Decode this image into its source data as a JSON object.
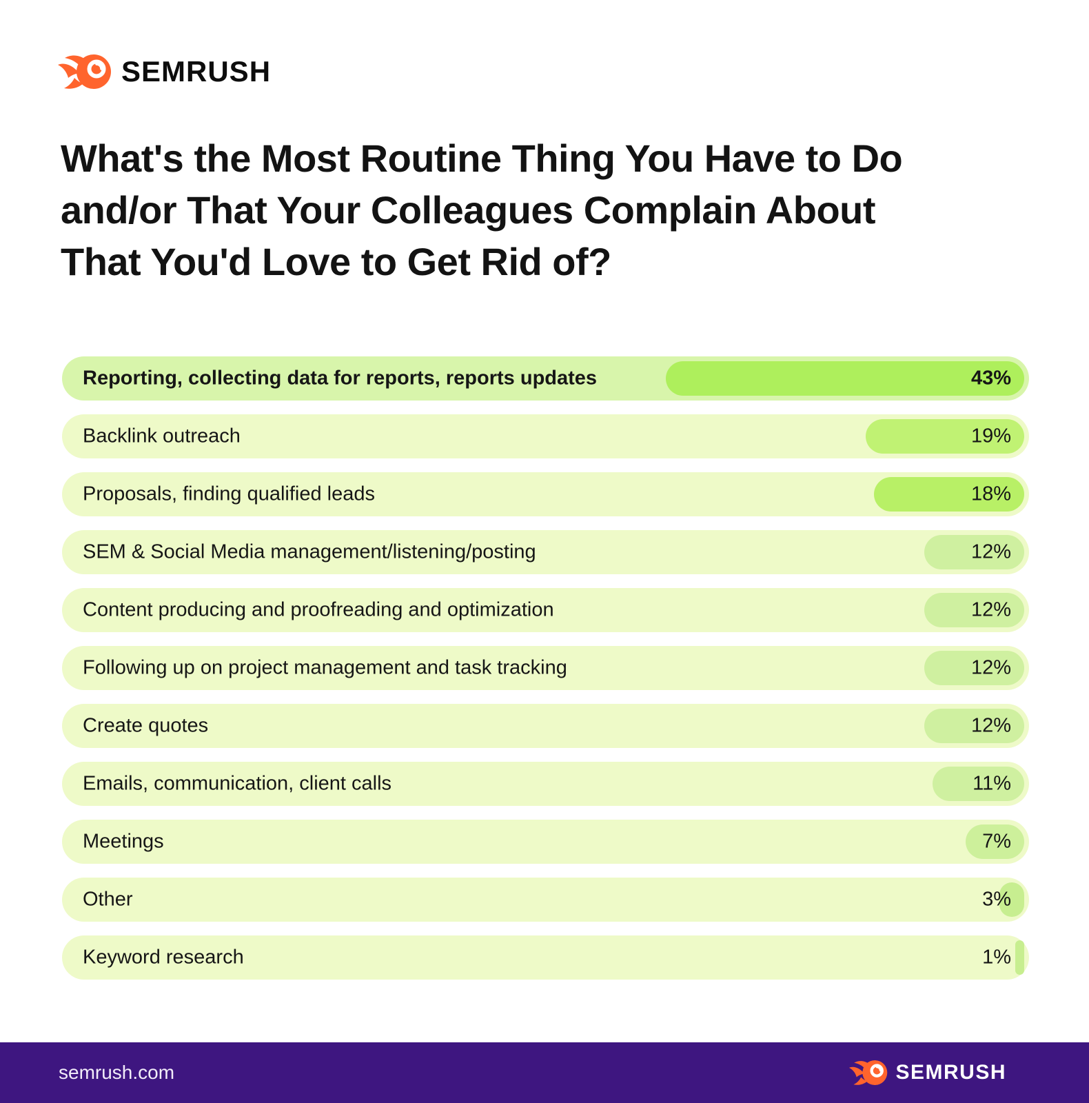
{
  "header": {
    "brand": "SEMRUSH",
    "title_lines": [
      "What's the Most Routine Thing You Have to Do",
      "and/or That Your Colleagues Complain About",
      "That You'd Love to Get Rid of?"
    ]
  },
  "chart_data": {
    "type": "bar",
    "orientation": "horizontal",
    "title": "What's the Most Routine Thing You Have to Do and/or That Your Colleagues Complain About That You'd Love to Get Rid of?",
    "categories": [
      "Reporting, collecting data for reports, reports updates",
      "Backlink outreach",
      "Proposals, finding qualified leads",
      "SEM & Social Media management/listening/posting",
      "Content producing and proofreading and optimization",
      "Following up on project management and task tracking",
      "Create quotes",
      "Emails, communication, client calls",
      "Meetings",
      "Other",
      "Keyword research"
    ],
    "values": [
      43,
      19,
      18,
      12,
      12,
      12,
      12,
      11,
      7,
      3,
      1
    ],
    "unit": "%",
    "xlim": [
      0,
      43
    ],
    "grid": false,
    "legend": "none",
    "value_labels_shown": true
  },
  "rows": [
    {
      "label": "Reporting, collecting data for reports, reports updates",
      "value": 43,
      "display": "43%",
      "bold": true,
      "row_bg": "#d8f5ab",
      "bar_color": "#aeef5c"
    },
    {
      "label": "Backlink outreach",
      "value": 19,
      "display": "19%",
      "bold": false,
      "row_bg": "#eefac8",
      "bar_color": "#c0f273"
    },
    {
      "label": "Proposals, finding qualified leads",
      "value": 18,
      "display": "18%",
      "bold": false,
      "row_bg": "#eefac8",
      "bar_color": "#b8f066"
    },
    {
      "label": "SEM & Social Media management/listening/posting",
      "value": 12,
      "display": "12%",
      "bold": false,
      "row_bg": "#eefac8",
      "bar_color": "#cff0a0"
    },
    {
      "label": "Content producing and proofreading and optimization",
      "value": 12,
      "display": "12%",
      "bold": false,
      "row_bg": "#eefac8",
      "bar_color": "#cff0a0"
    },
    {
      "label": "Following up on project management and task tracking",
      "value": 12,
      "display": "12%",
      "bold": false,
      "row_bg": "#eefac8",
      "bar_color": "#cff0a0"
    },
    {
      "label": "Create quotes",
      "value": 12,
      "display": "12%",
      "bold": false,
      "row_bg": "#eefac8",
      "bar_color": "#cff0a0"
    },
    {
      "label": "Emails, communication, client calls",
      "value": 11,
      "display": "11%",
      "bold": false,
      "row_bg": "#eefac8",
      "bar_color": "#cff0a0"
    },
    {
      "label": "Meetings",
      "value": 7,
      "display": "7%",
      "bold": false,
      "row_bg": "#eefac8",
      "bar_color": "#cdf09b"
    },
    {
      "label": "Other",
      "value": 3,
      "display": "3%",
      "bold": false,
      "row_bg": "#eefac8",
      "bar_color": "#c7ee90"
    },
    {
      "label": "Keyword research",
      "value": 1,
      "display": "1%",
      "bold": false,
      "row_bg": "#eefac8",
      "bar_color": "#c7ee90"
    }
  ],
  "footer": {
    "url": "semrush.com",
    "brand": "SEMRUSH"
  },
  "colors": {
    "brand_orange": "#ff642d",
    "footer_purple": "#3e1680",
    "text_dark": "#141414",
    "highlight_row_bg": "#d8f5ab",
    "row_bg": "#eefac8",
    "bar_max": "#aeef5c"
  }
}
